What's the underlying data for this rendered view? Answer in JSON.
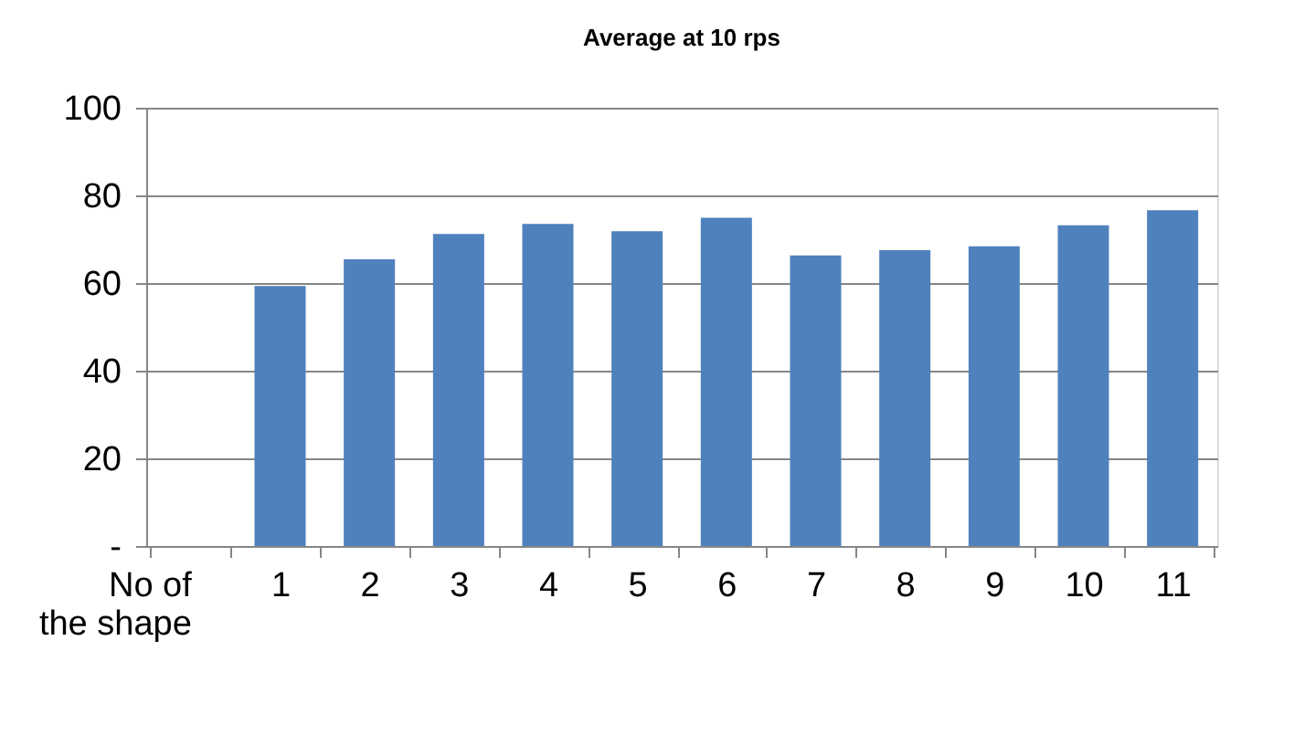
{
  "chart_data": {
    "type": "bar",
    "title": "Average at 10 rps",
    "categories": [
      "No of the shape",
      "1",
      "2",
      "3",
      "4",
      "5",
      "6",
      "7",
      "8",
      "9",
      "10",
      "11"
    ],
    "values": [
      null,
      59.3,
      65.4,
      71.2,
      73.5,
      71.8,
      74.9,
      66.3,
      67.5,
      68.4,
      73.2,
      76.6
    ],
    "color": "#4f81bd",
    "ylim": [
      0,
      100
    ],
    "yticks": [
      {
        "value": 0,
        "label": "-"
      },
      20,
      40,
      60,
      80,
      100
    ],
    "grid": "y"
  }
}
